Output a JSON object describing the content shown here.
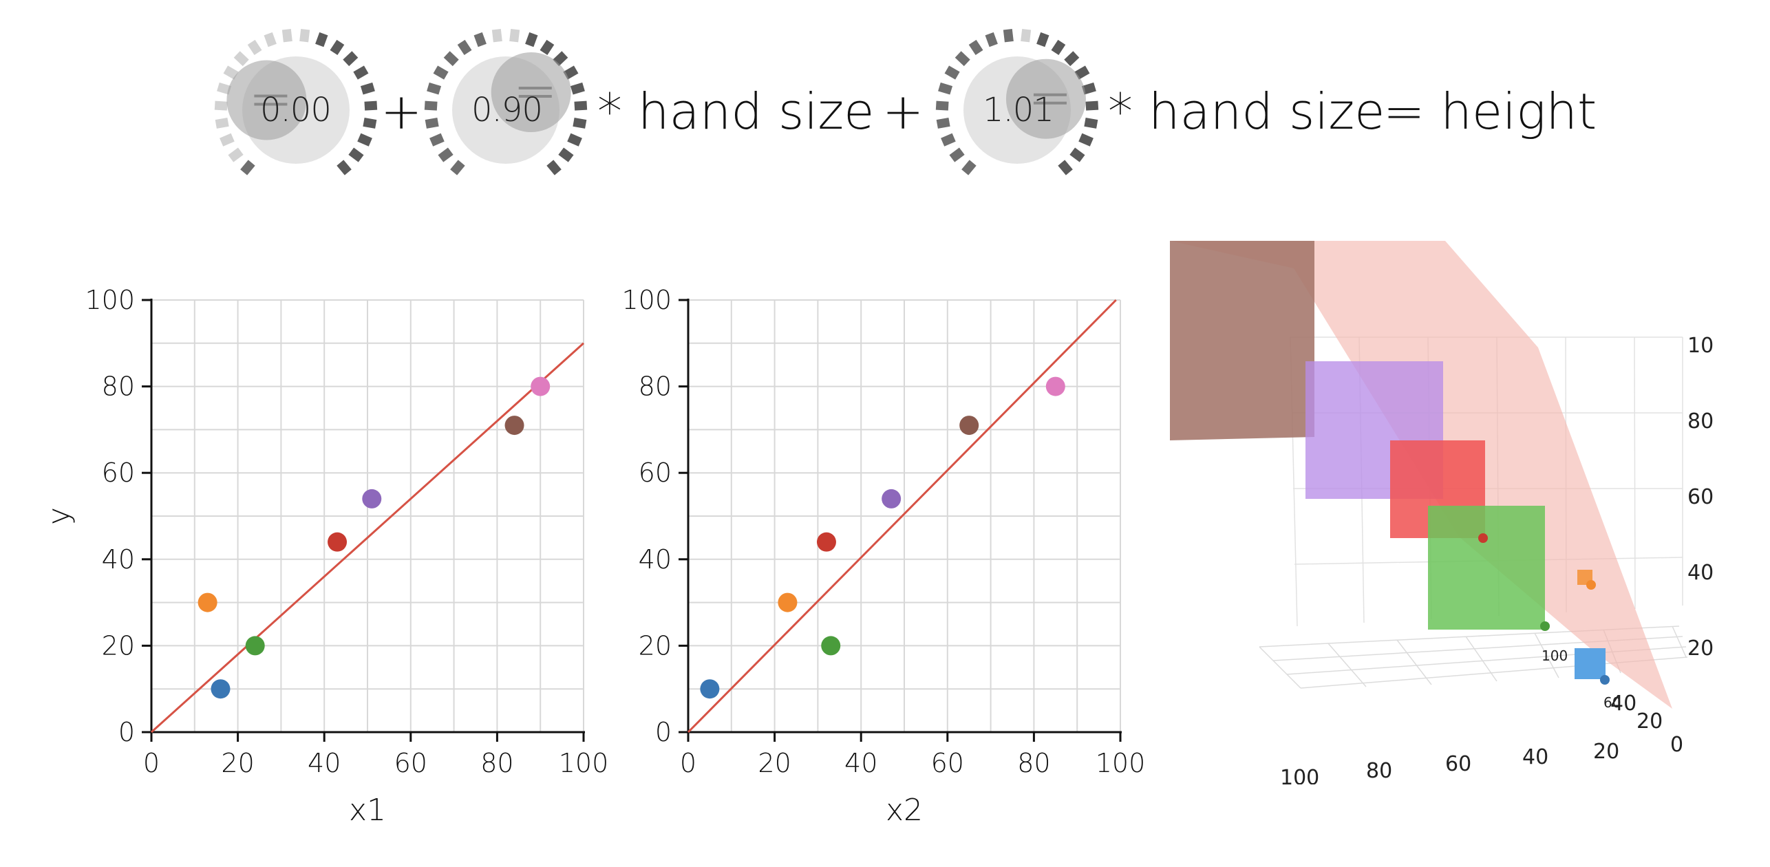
{
  "formula": {
    "knob1": {
      "value": "0.00",
      "fraction": 0.0
    },
    "plus1": "+",
    "knob2": {
      "value": "0.90",
      "fraction": 0.45
    },
    "times1": "* hand size",
    "plus2": "+",
    "knob3": {
      "value": "1.01",
      "fraction": 0.5
    },
    "times2": "* hand size",
    "equals": "= height"
  },
  "chart_data": [
    {
      "type": "scatter",
      "xlabel": "x1",
      "ylabel": "y",
      "xlim": [
        0,
        100
      ],
      "ylim": [
        0,
        100
      ],
      "xticks": [
        "0",
        "20",
        "40",
        "60",
        "80",
        "100"
      ],
      "yticks": [
        "0",
        "20",
        "40",
        "60",
        "80",
        "100"
      ],
      "grid": true,
      "points": [
        {
          "x": 16,
          "y": 10,
          "color": "#3a77b4"
        },
        {
          "x": 13,
          "y": 30,
          "color": "#f28a2e"
        },
        {
          "x": 24,
          "y": 20,
          "color": "#4a9c3c"
        },
        {
          "x": 43,
          "y": 44,
          "color": "#c73a2f"
        },
        {
          "x": 51,
          "y": 54,
          "color": "#8d68bb"
        },
        {
          "x": 84,
          "y": 71,
          "color": "#8a5a4e"
        },
        {
          "x": 90,
          "y": 80,
          "color": "#df7cbf"
        }
      ],
      "line": {
        "x": [
          0,
          100
        ],
        "y": [
          0,
          90
        ],
        "color": "#d65245"
      }
    },
    {
      "type": "scatter",
      "xlabel": "x2",
      "ylabel": "",
      "xlim": [
        0,
        100
      ],
      "ylim": [
        0,
        100
      ],
      "xticks": [
        "0",
        "20",
        "40",
        "60",
        "80",
        "100"
      ],
      "yticks": [
        "0",
        "20",
        "40",
        "60",
        "80",
        "100"
      ],
      "grid": true,
      "points": [
        {
          "x": 5,
          "y": 10,
          "color": "#3a77b4"
        },
        {
          "x": 23,
          "y": 30,
          "color": "#f28a2e"
        },
        {
          "x": 33,
          "y": 20,
          "color": "#4a9c3c"
        },
        {
          "x": 32,
          "y": 44,
          "color": "#c73a2f"
        },
        {
          "x": 47,
          "y": 54,
          "color": "#8d68bb"
        },
        {
          "x": 65,
          "y": 71,
          "color": "#8a5a4e"
        },
        {
          "x": 85,
          "y": 80,
          "color": "#df7cbf"
        }
      ],
      "line": {
        "x": [
          0,
          99
        ],
        "y": [
          0,
          100
        ],
        "color": "#d65245"
      }
    }
  ],
  "view3d": {
    "z_ticks": [
      "10",
      "80",
      "60",
      "40",
      "20"
    ],
    "x_ticks": [
      "100",
      "80",
      "60",
      "40",
      "20",
      "0"
    ],
    "y_ticks": [
      "100",
      "60",
      "40",
      "20"
    ]
  }
}
